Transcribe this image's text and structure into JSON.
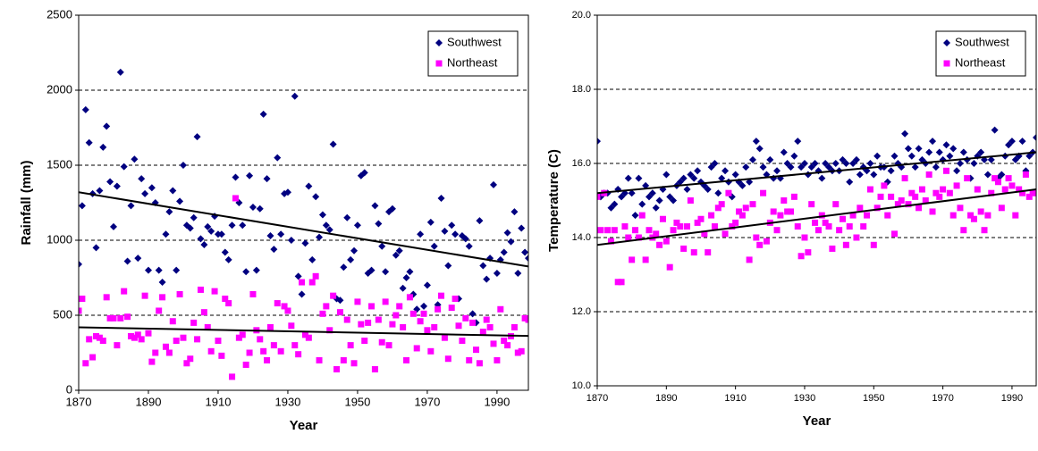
{
  "chart_data": [
    {
      "type": "scatter",
      "y_label": "Rainfall (mm)",
      "x_label": "Year",
      "xlim": [
        1870,
        1999
      ],
      "ylim": [
        0,
        2500
      ],
      "xticks": [
        1870,
        1890,
        1910,
        1930,
        1950,
        1970,
        1990
      ],
      "yticks": [
        0,
        500,
        1000,
        1500,
        2000,
        2500
      ],
      "grid": true,
      "legend": "top-right",
      "x": [
        1870,
        1871,
        1872,
        1873,
        1874,
        1875,
        1876,
        1877,
        1878,
        1879,
        1880,
        1881,
        1882,
        1883,
        1884,
        1885,
        1886,
        1887,
        1888,
        1889,
        1890,
        1891,
        1892,
        1893,
        1894,
        1895,
        1896,
        1897,
        1898,
        1899,
        1900,
        1901,
        1902,
        1903,
        1904,
        1905,
        1906,
        1907,
        1908,
        1909,
        1910,
        1911,
        1912,
        1913,
        1914,
        1915,
        1916,
        1917,
        1918,
        1919,
        1920,
        1921,
        1922,
        1923,
        1924,
        1925,
        1926,
        1927,
        1928,
        1929,
        1930,
        1931,
        1932,
        1933,
        1934,
        1935,
        1936,
        1937,
        1938,
        1939,
        1940,
        1941,
        1942,
        1943,
        1944,
        1945,
        1946,
        1947,
        1948,
        1949,
        1950,
        1951,
        1952,
        1953,
        1954,
        1955,
        1956,
        1957,
        1958,
        1959,
        1960,
        1961,
        1962,
        1963,
        1964,
        1965,
        1966,
        1967,
        1968,
        1969,
        1970,
        1971,
        1972,
        1973,
        1974,
        1975,
        1976,
        1977,
        1978,
        1979,
        1980,
        1981,
        1982,
        1983,
        1984,
        1985,
        1986,
        1987,
        1988,
        1989,
        1990,
        1991,
        1992,
        1993,
        1994,
        1995,
        1996,
        1997,
        1998,
        1999
      ],
      "series": [
        {
          "name": "Southwest",
          "color": "#000080",
          "marker": "diamond",
          "values": [
            840,
            1230,
            1870,
            1650,
            1310,
            950,
            1330,
            1620,
            1760,
            1390,
            1090,
            1360,
            2120,
            1490,
            860,
            1230,
            1540,
            880,
            1410,
            1310,
            800,
            1350,
            1250,
            800,
            720,
            1040,
            1190,
            1330,
            800,
            1260,
            1500,
            1100,
            1080,
            1150,
            1690,
            1010,
            970,
            1090,
            1060,
            1160,
            1040,
            1040,
            920,
            870,
            1100,
            1420,
            1250,
            1100,
            790,
            1430,
            1220,
            800,
            1210,
            1840,
            1410,
            1030,
            940,
            1550,
            1040,
            1310,
            1320,
            1000,
            1960,
            760,
            640,
            980,
            1360,
            870,
            1290,
            1020,
            1170,
            1100,
            1070,
            1640,
            610,
            600,
            820,
            1150,
            870,
            930,
            1100,
            1430,
            1450,
            780,
            800,
            1230,
            1110,
            960,
            790,
            1190,
            1210,
            900,
            930,
            680,
            750,
            790,
            640,
            540,
            1040,
            560,
            700,
            1120,
            960,
            570,
            1280,
            1060,
            830,
            1100,
            1040,
            610,
            1030,
            1010,
            960,
            510,
            450,
            1130,
            830,
            740,
            880,
            1370,
            780,
            870,
            920,
            1050,
            990,
            1190,
            780,
            1080,
            920,
            880
          ]
        },
        {
          "name": "Northeast",
          "color": "#ff00ff",
          "marker": "square",
          "values": [
            530,
            610,
            180,
            340,
            220,
            360,
            350,
            330,
            620,
            480,
            480,
            300,
            480,
            660,
            490,
            360,
            350,
            370,
            340,
            630,
            380,
            190,
            250,
            530,
            620,
            290,
            250,
            460,
            330,
            640,
            350,
            180,
            210,
            450,
            340,
            670,
            520,
            420,
            260,
            660,
            330,
            230,
            610,
            580,
            90,
            1280,
            350,
            370,
            170,
            250,
            640,
            400,
            340,
            260,
            200,
            420,
            300,
            580,
            260,
            560,
            530,
            430,
            300,
            240,
            720,
            370,
            350,
            720,
            760,
            200,
            510,
            560,
            400,
            630,
            140,
            520,
            200,
            470,
            300,
            180,
            590,
            440,
            330,
            450,
            560,
            140,
            470,
            320,
            590,
            300,
            440,
            500,
            560,
            420,
            200,
            620,
            510,
            280,
            460,
            510,
            400,
            260,
            420,
            540,
            630,
            350,
            210,
            550,
            610,
            430,
            330,
            480,
            200,
            450,
            270,
            180,
            390,
            470,
            420,
            310,
            200,
            540,
            330,
            300,
            360,
            420,
            250,
            260,
            480,
            470
          ]
        }
      ],
      "trendlines": [
        {
          "color": "#000000",
          "x": [
            1870,
            1999
          ],
          "values": [
            1320,
            825
          ]
        },
        {
          "color": "#000000",
          "x": [
            1870,
            1999
          ],
          "values": [
            420,
            362
          ]
        }
      ]
    },
    {
      "type": "scatter",
      "y_label": "Temperature (C)",
      "x_label": "Year",
      "xlim": [
        1870,
        1997
      ],
      "ylim": [
        10,
        20
      ],
      "xticks": [
        1870,
        1890,
        1910,
        1930,
        1950,
        1970,
        1990
      ],
      "yticks": [
        {
          "value": 10,
          "label": "10.0"
        },
        {
          "value": 12,
          "label": "12.0"
        },
        {
          "value": 14,
          "label": "14.0"
        },
        {
          "value": 16,
          "label": "16.0"
        },
        {
          "value": 18,
          "label": "18.0"
        },
        {
          "value": 20,
          "label": "20.0"
        }
      ],
      "grid": true,
      "legend": "top-right",
      "x": [
        1870,
        1871,
        1872,
        1873,
        1874,
        1875,
        1876,
        1877,
        1878,
        1879,
        1880,
        1881,
        1882,
        1883,
        1884,
        1885,
        1886,
        1887,
        1888,
        1889,
        1890,
        1891,
        1892,
        1893,
        1894,
        1895,
        1896,
        1897,
        1898,
        1899,
        1900,
        1901,
        1902,
        1903,
        1904,
        1905,
        1906,
        1907,
        1908,
        1909,
        1910,
        1911,
        1912,
        1913,
        1914,
        1915,
        1916,
        1917,
        1918,
        1919,
        1920,
        1921,
        1922,
        1923,
        1924,
        1925,
        1926,
        1927,
        1928,
        1929,
        1930,
        1931,
        1932,
        1933,
        1934,
        1935,
        1936,
        1937,
        1938,
        1939,
        1940,
        1941,
        1942,
        1943,
        1944,
        1945,
        1946,
        1947,
        1948,
        1949,
        1950,
        1951,
        1952,
        1953,
        1954,
        1955,
        1956,
        1957,
        1958,
        1959,
        1960,
        1961,
        1962,
        1963,
        1964,
        1965,
        1966,
        1967,
        1968,
        1969,
        1970,
        1971,
        1972,
        1973,
        1974,
        1975,
        1976,
        1977,
        1978,
        1979,
        1980,
        1981,
        1982,
        1983,
        1984,
        1985,
        1986,
        1987,
        1988,
        1989,
        1990,
        1991,
        1992,
        1993,
        1994,
        1995,
        1996,
        1997
      ],
      "series": [
        {
          "name": "Southwest",
          "color": "#000080",
          "marker": "diamond",
          "values": [
            16.6,
            15.1,
            15.2,
            15.2,
            14.8,
            14.9,
            15.3,
            15.1,
            15.2,
            15.6,
            15.2,
            14.6,
            15.6,
            14.9,
            15.4,
            15.1,
            15.2,
            14.8,
            15.0,
            15.3,
            15.7,
            15.1,
            15.0,
            15.4,
            15.5,
            15.6,
            15.3,
            15.7,
            15.6,
            15.8,
            15.5,
            15.4,
            15.3,
            15.9,
            16.0,
            15.2,
            15.6,
            15.8,
            15.5,
            15.1,
            15.7,
            15.5,
            15.4,
            15.9,
            15.5,
            16.1,
            16.6,
            16.4,
            15.9,
            15.7,
            16.1,
            15.6,
            15.8,
            15.6,
            16.3,
            16.0,
            15.9,
            16.2,
            16.6,
            15.9,
            16.0,
            15.7,
            15.9,
            16.0,
            15.8,
            15.6,
            16.0,
            15.9,
            15.8,
            16.0,
            15.8,
            16.1,
            16.0,
            15.5,
            16.0,
            16.1,
            15.7,
            15.9,
            15.8,
            16.0,
            15.7,
            16.2,
            15.9,
            15.9,
            15.5,
            15.8,
            16.2,
            16.0,
            15.9,
            16.8,
            16.4,
            16.2,
            15.9,
            16.4,
            16.1,
            16.0,
            16.3,
            16.6,
            15.9,
            16.3,
            16.1,
            16.5,
            16.2,
            16.4,
            15.8,
            16.0,
            16.3,
            16.1,
            15.6,
            16.0,
            16.2,
            16.3,
            16.1,
            15.7,
            16.1,
            16.9,
            15.6,
            15.7,
            16.2,
            16.5,
            16.6,
            16.1,
            16.2,
            16.6,
            15.8,
            16.2,
            16.3,
            16.7
          ]
        },
        {
          "name": "Northeast",
          "color": "#ff00ff",
          "marker": "square",
          "values": [
            15.1,
            14.2,
            15.2,
            14.2,
            13.9,
            14.2,
            12.8,
            12.8,
            14.3,
            14.0,
            13.4,
            14.2,
            14.0,
            14.6,
            13.4,
            14.2,
            14.0,
            14.1,
            13.8,
            14.5,
            13.9,
            13.2,
            14.2,
            14.4,
            14.3,
            13.7,
            14.3,
            15.0,
            13.6,
            14.4,
            14.5,
            14.1,
            13.6,
            14.6,
            14.3,
            14.8,
            14.9,
            14.1,
            15.2,
            14.3,
            14.4,
            14.7,
            14.6,
            14.8,
            13.4,
            14.9,
            14.0,
            13.8,
            15.2,
            13.9,
            14.4,
            14.7,
            14.2,
            14.6,
            15.0,
            14.7,
            14.7,
            15.1,
            14.3,
            13.5,
            14.0,
            13.6,
            14.9,
            14.4,
            14.2,
            14.6,
            14.4,
            14.3,
            13.7,
            14.9,
            14.2,
            14.5,
            13.8,
            14.3,
            14.6,
            14.0,
            14.8,
            14.3,
            14.6,
            15.3,
            13.8,
            14.8,
            15.1,
            15.4,
            14.6,
            15.1,
            14.1,
            14.9,
            15.0,
            15.6,
            14.9,
            15.2,
            15.1,
            14.8,
            15.3,
            15.0,
            15.7,
            14.7,
            15.2,
            15.1,
            15.3,
            15.8,
            15.2,
            14.6,
            15.4,
            14.8,
            14.2,
            15.6,
            14.6,
            14.5,
            15.3,
            14.7,
            14.2,
            14.6,
            15.2,
            15.6,
            15.5,
            14.8,
            15.3,
            15.6,
            15.4,
            14.6,
            15.3,
            15.2,
            15.7,
            15.1,
            15.2,
            15.2
          ]
        }
      ],
      "trendlines": [
        {
          "color": "#000000",
          "x": [
            1870,
            1997
          ],
          "values": [
            15.2,
            16.3
          ]
        },
        {
          "color": "#000000",
          "x": [
            1870,
            1997
          ],
          "values": [
            13.8,
            15.3
          ]
        }
      ]
    }
  ]
}
